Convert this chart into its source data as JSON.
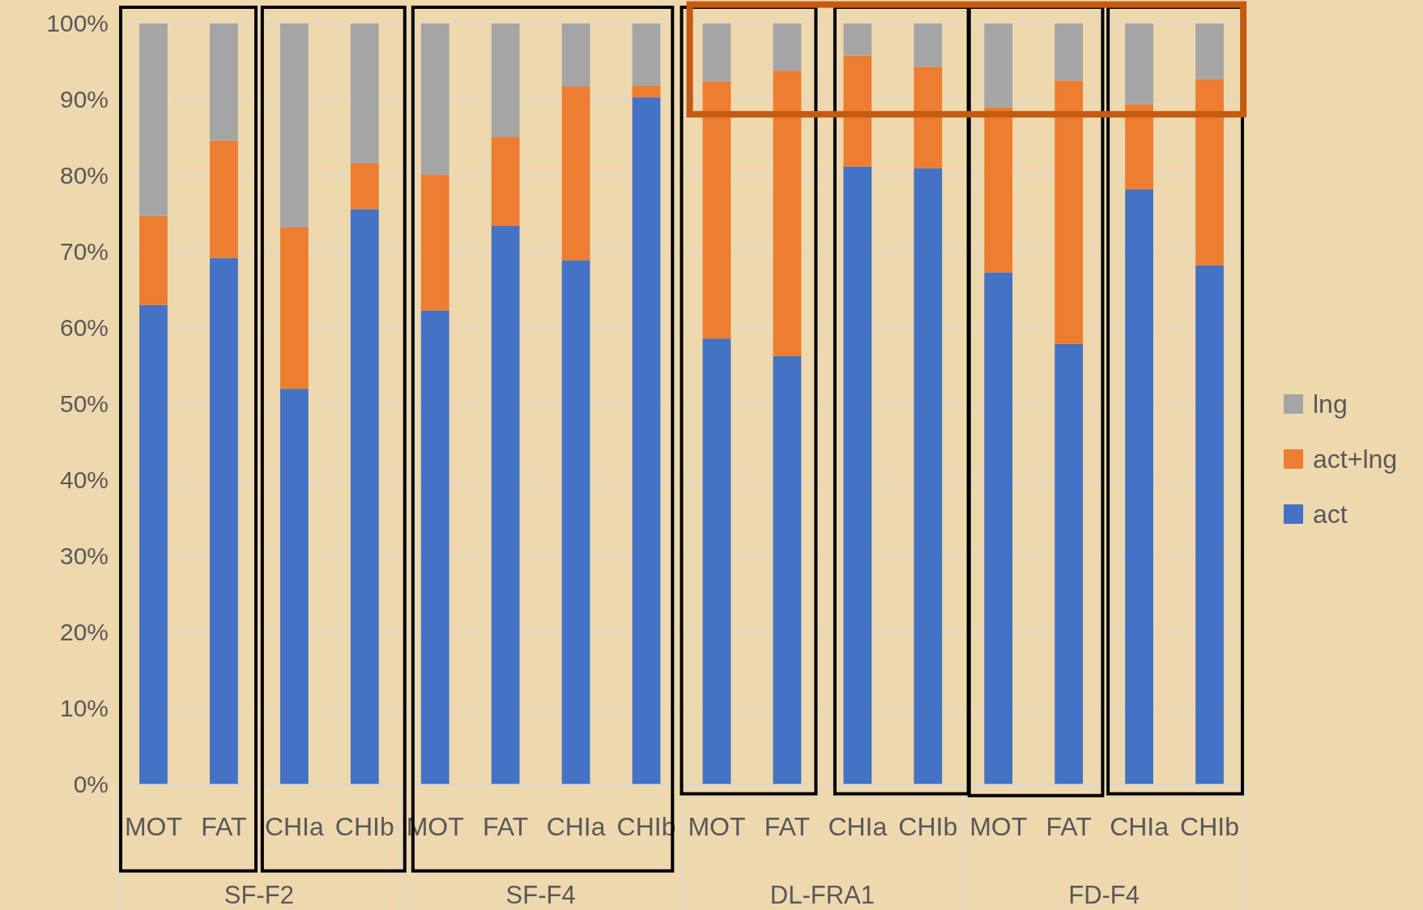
{
  "chart_data": {
    "type": "bar",
    "stacked": true,
    "categories": [
      "MOT",
      "FAT",
      "CHIa",
      "CHIb",
      "MOT",
      "FAT",
      "CHIa",
      "CHIb",
      "MOT",
      "FAT",
      "CHIa",
      "CHIb",
      "MOT",
      "FAT",
      "CHIa",
      "CHIb"
    ],
    "series": [
      {
        "name": "act",
        "color": "#4472c4",
        "values": [
          63.0,
          69.2,
          52.0,
          75.6,
          62.3,
          73.4,
          68.9,
          90.3,
          58.6,
          56.3,
          81.2,
          81.0,
          67.3,
          57.9,
          78.2,
          68.2
        ]
      },
      {
        "name": "act+lng",
        "color": "#ed7d31",
        "values": [
          11.7,
          15.4,
          21.2,
          6.0,
          17.8,
          11.7,
          22.8,
          1.5,
          33.8,
          37.5,
          14.6,
          13.3,
          21.7,
          34.6,
          11.2,
          24.5
        ]
      },
      {
        "name": "lng",
        "color": "#a5a5a5",
        "values": [
          25.3,
          15.4,
          26.8,
          18.4,
          19.9,
          14.9,
          8.3,
          8.2,
          7.6,
          6.2,
          4.2,
          5.7,
          11.0,
          7.5,
          10.6,
          7.3
        ]
      }
    ],
    "ylim": [
      0,
      100
    ],
    "yticks": [
      {
        "value": 0,
        "label": "0%"
      },
      {
        "value": 10,
        "label": "10%"
      },
      {
        "value": 20,
        "label": "20%"
      },
      {
        "value": 30,
        "label": "30%"
      },
      {
        "value": 40,
        "label": "40%"
      },
      {
        "value": 50,
        "label": "50%"
      },
      {
        "value": 60,
        "label": "60%"
      },
      {
        "value": 70,
        "label": "70%"
      },
      {
        "value": 80,
        "label": "80%"
      },
      {
        "value": 90,
        "label": "90%"
      },
      {
        "value": 100,
        "label": "100%"
      }
    ],
    "grid": "y",
    "legend": "right",
    "annotations": [
      "SF-F2",
      "SF-F4",
      "DL-FRA1",
      "FD-F4"
    ]
  }
}
